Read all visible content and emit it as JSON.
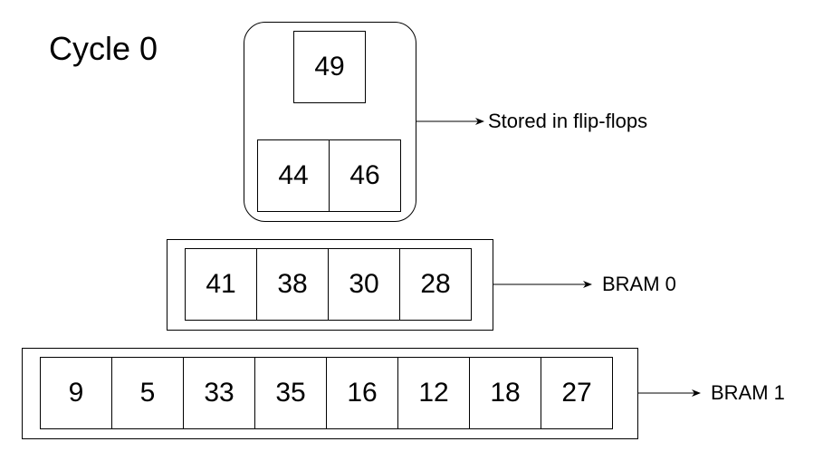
{
  "title": "Cycle 0",
  "flip_flops": {
    "top": [
      "49"
    ],
    "bottom": [
      "44",
      "46"
    ],
    "label": "Stored in flip-flops"
  },
  "bram0": {
    "values": [
      "41",
      "38",
      "30",
      "28"
    ],
    "label": "BRAM 0"
  },
  "bram1": {
    "values": [
      "9",
      "5",
      "33",
      "35",
      "16",
      "12",
      "18",
      "27"
    ],
    "label": "BRAM 1"
  }
}
